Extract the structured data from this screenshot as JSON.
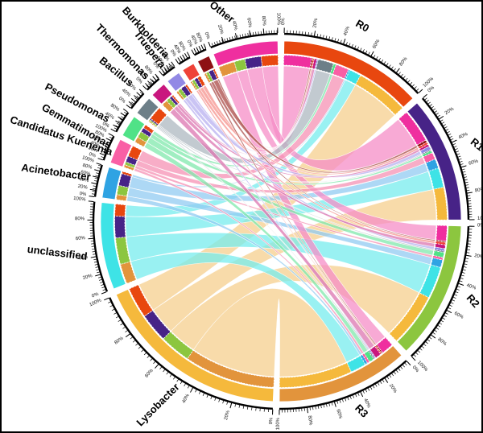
{
  "figure": {
    "kind": "circos-chord-diagram",
    "background_color": "#ffffff",
    "frame_color": "#000000",
    "unit": "%"
  },
  "chart_data": {
    "type": "chord",
    "tick_labels": [
      "0%",
      "20%",
      "40%",
      "60%",
      "80%",
      "100%"
    ],
    "samples": [
      "R0",
      "R1",
      "R2",
      "R3"
    ],
    "genera": [
      "Lysobacter",
      "unclassified",
      "Acinetobacter",
      "Candidatus Kuenenia",
      "Gemmatimonas",
      "Pseudomonas",
      "Bacillus",
      "Thermomonas",
      "Truepera",
      "Burkholderia",
      "Other"
    ],
    "genus_stack_order_in_samples": [
      "Other",
      "Burkholderia",
      "Truepera",
      "Bacillus",
      "Thermomonas",
      "Pseudomonas",
      "Gemmatimonas",
      "Candidatus Kuenenia",
      "Acinetobacter",
      "unclassified",
      "Lysobacter"
    ],
    "sample_stack_order_in_genera": [
      "R3",
      "R2",
      "R1",
      "R0"
    ],
    "ribbon_draw_order": [
      "Lysobacter",
      "unclassified",
      "Acinetobacter",
      "Other",
      "Candidatus Kuenenia",
      "Gemmatimonas",
      "Pseudomonas",
      "Thermomonas",
      "Bacillus",
      "Truepera",
      "Burkholderia"
    ],
    "segments": [
      {
        "name": "R0",
        "kind": "sample",
        "color": "#E8470F",
        "start": 1,
        "end": 47,
        "composition": {
          "Other": 21,
          "Burkholderia": 1,
          "Truepera": 1,
          "Bacillus": 2,
          "Thermomonas": 1,
          "Pseudomonas": 12,
          "Gemmatimonas": 2,
          "Candidatus Kuenenia": 10,
          "Acinetobacter": 1,
          "unclassified": 9,
          "Lysobacter": 40
        }
      },
      {
        "name": "R1",
        "kind": "sample",
        "color": "#472387",
        "start": 49,
        "end": 89.5,
        "composition": {
          "Other": 29,
          "Burkholderia": 2,
          "Truepera": 2,
          "Bacillus": 2,
          "Thermomonas": 3,
          "Pseudomonas": 1,
          "Gemmatimonas": 2,
          "Candidatus Kuenenia": 6,
          "Acinetobacter": 8,
          "unclassified": 17,
          "Lysobacter": 28
        }
      },
      {
        "name": "R2",
        "kind": "sample",
        "color": "#8CC63F",
        "start": 91.5,
        "end": 136,
        "composition": {
          "Other": 12,
          "Burkholderia": 1,
          "Truepera": 2,
          "Bacillus": 3,
          "Thermomonas": 2,
          "Pseudomonas": 1,
          "Gemmatimonas": 4,
          "Candidatus Kuenenia": 2,
          "Acinetobacter": 6,
          "unclassified": 25,
          "Lysobacter": 42
        }
      },
      {
        "name": "R3",
        "kind": "sample",
        "color": "#E2943C",
        "start": 138,
        "end": 180.5,
        "composition": {
          "Other": 10,
          "Burkholderia": 1,
          "Truepera": 1,
          "Bacillus": 5,
          "Thermomonas": 1,
          "Pseudomonas": 1,
          "Gemmatimonas": 4,
          "Candidatus Kuenenia": 2,
          "Acinetobacter": 2,
          "unclassified": 13,
          "Lysobacter": 60
        }
      },
      {
        "name": "Lysobacter",
        "kind": "genus",
        "color": "#F5B93C",
        "start": 182.5,
        "end": 246,
        "composition": {
          "R0": 17,
          "R1": 16,
          "R2": 17,
          "R3": 50
        }
      },
      {
        "name": "unclassified",
        "kind": "genus",
        "color": "#3EE3E6",
        "start": 248,
        "end": 276,
        "composition": {
          "R0": 15,
          "R1": 27,
          "R2": 33,
          "R3": 25
        }
      },
      {
        "name": "Acinetobacter",
        "kind": "genus",
        "color": "#2FA3E3",
        "start": 277.5,
        "end": 287.5,
        "composition": {
          "R0": 8,
          "R1": 42,
          "R2": 32,
          "R3": 18
        }
      },
      {
        "name": "Candidatus Kuenenia",
        "kind": "genus",
        "color": "#F95FA5",
        "start": 289,
        "end": 297,
        "composition": {
          "R0": 48,
          "R1": 27,
          "R2": 13,
          "R3": 12
        }
      },
      {
        "name": "Gemmatimonas",
        "kind": "genus",
        "color": "#50E287",
        "start": 298.5,
        "end": 305.5,
        "composition": {
          "R0": 18,
          "R1": 22,
          "R2": 32,
          "R3": 28
        }
      },
      {
        "name": "Pseudomonas",
        "kind": "genus",
        "color": "#6D7F88",
        "start": 307,
        "end": 313,
        "composition": {
          "R0": 78,
          "R1": 8,
          "R2": 8,
          "R3": 6
        }
      },
      {
        "name": "Bacillus",
        "kind": "genus",
        "color": "#C9177E",
        "start": 314.5,
        "end": 319.5,
        "composition": {
          "R0": 12,
          "R1": 20,
          "R2": 28,
          "R3": 40
        }
      },
      {
        "name": "Thermomonas",
        "kind": "genus",
        "color": "#9289E5",
        "start": 321,
        "end": 325.5,
        "composition": {
          "R0": 15,
          "R1": 40,
          "R2": 28,
          "R3": 17
        }
      },
      {
        "name": "Truepera",
        "kind": "genus",
        "color": "#EF4238",
        "start": 327,
        "end": 331,
        "composition": {
          "R0": 30,
          "R1": 30,
          "R2": 25,
          "R3": 15
        }
      },
      {
        "name": "Burkholderia",
        "kind": "genus",
        "color": "#8E1014",
        "start": 332.5,
        "end": 336.5,
        "composition": {
          "R0": 15,
          "R1": 42,
          "R2": 25,
          "R3": 18
        }
      },
      {
        "name": "Other",
        "kind": "genus",
        "color": "#EF2F9F",
        "start": 338,
        "end": 359,
        "composition": {
          "R0": 28,
          "R1": 27,
          "R2": 18,
          "R3": 27
        }
      }
    ],
    "ribbon_tints": {
      "Lysobacter": "#F6CE8C",
      "unclassified": "#76ECEE",
      "Acinetobacter": "#90CBF1",
      "Candidatus Kuenenia": "#F591B4",
      "Gemmatimonas": "#7FE8AC",
      "Pseudomonas": "#ADB8BF",
      "Bacillus": "#DC74B0",
      "Thermomonas": "#B7B0F0",
      "Truepera": "#F5928C",
      "Burkholderia": "#A84744",
      "Other": "#F68CC7"
    }
  }
}
